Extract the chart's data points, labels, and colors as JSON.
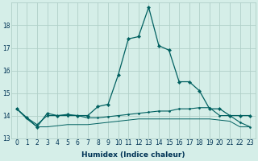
{
  "xlabel": "Humidex (Indice chaleur)",
  "background_color": "#d5eee8",
  "grid_color": "#b0d0c8",
  "line_color": "#006060",
  "x": [
    0,
    1,
    2,
    3,
    4,
    5,
    6,
    7,
    8,
    9,
    10,
    11,
    12,
    13,
    14,
    15,
    16,
    17,
    18,
    19,
    20,
    21,
    22,
    23
  ],
  "line1": [
    14.3,
    13.9,
    13.5,
    14.1,
    14.0,
    14.05,
    14.0,
    14.0,
    14.4,
    14.5,
    15.8,
    17.4,
    17.5,
    18.8,
    17.1,
    16.9,
    15.5,
    15.5,
    15.1,
    14.3,
    14.3,
    14.0,
    14.0,
    14.0
  ],
  "line2": [
    14.3,
    13.9,
    13.6,
    14.0,
    14.0,
    14.0,
    14.0,
    13.9,
    13.9,
    13.95,
    14.0,
    14.05,
    14.1,
    14.15,
    14.2,
    14.2,
    14.3,
    14.3,
    14.35,
    14.35,
    14.0,
    14.0,
    13.7,
    13.5
  ],
  "line3": [
    14.3,
    13.85,
    13.5,
    13.5,
    13.55,
    13.6,
    13.6,
    13.6,
    13.65,
    13.7,
    13.75,
    13.8,
    13.85,
    13.85,
    13.85,
    13.85,
    13.85,
    13.85,
    13.85,
    13.85,
    13.8,
    13.75,
    13.5,
    13.5
  ],
  "ylim": [
    13.0,
    19.0
  ],
  "xlim": [
    -0.5,
    23.5
  ],
  "yticks": [
    13,
    14,
    15,
    16,
    17,
    18
  ],
  "xticks": [
    0,
    1,
    2,
    3,
    4,
    5,
    6,
    7,
    8,
    9,
    10,
    11,
    12,
    13,
    14,
    15,
    16,
    17,
    18,
    19,
    20,
    21,
    22,
    23
  ],
  "xlabel_fontsize": 6.5,
  "xlabel_fontweight": "bold",
  "xlabel_color": "#003355",
  "tick_fontsize": 5.5,
  "tick_color": "#003355"
}
